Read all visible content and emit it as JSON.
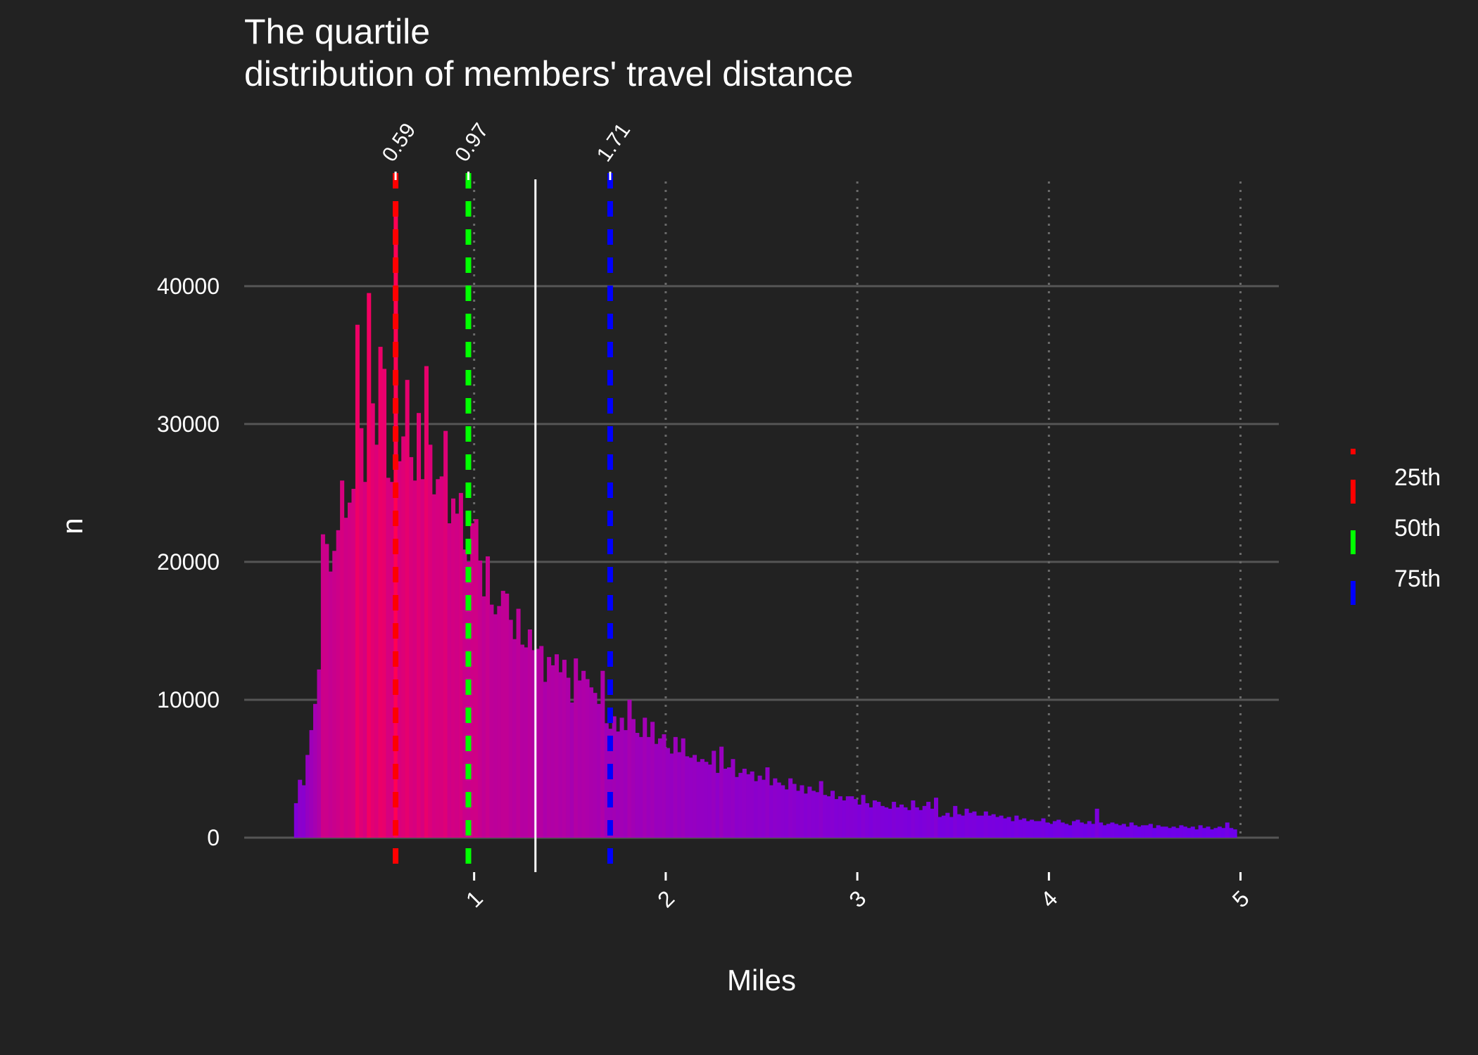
{
  "chart_data": {
    "type": "bar",
    "title_lines": [
      "The quartile",
      "distribution of members' travel distance"
    ],
    "xlabel": "Miles",
    "ylabel": "n",
    "xlim": [
      -0.2,
      5.2
    ],
    "ylim": [
      -2500,
      48000
    ],
    "x_ticks": [
      1,
      2,
      3,
      4,
      5
    ],
    "x_tick_labels": [
      "1",
      "2",
      "3",
      "4",
      "5"
    ],
    "y_ticks": [
      0,
      10000,
      20000,
      30000,
      40000
    ],
    "y_tick_labels": [
      "0",
      "10000",
      "20000",
      "30000",
      "40000"
    ],
    "grid": "horizontal major lines solid, vertical major lines dotted",
    "bin_width": 0.02,
    "color_low": "#5a00ff",
    "color_high": "#ff0055",
    "histogram": {
      "x": [
        0.07,
        0.09,
        0.11,
        0.13,
        0.15,
        0.17,
        0.19,
        0.21,
        0.23,
        0.25,
        0.27,
        0.29,
        0.31,
        0.33,
        0.35,
        0.37,
        0.39,
        0.41,
        0.43,
        0.45,
        0.47,
        0.49,
        0.51,
        0.53,
        0.55,
        0.57,
        0.59,
        0.61,
        0.63,
        0.65,
        0.67,
        0.69,
        0.71,
        0.73,
        0.75,
        0.77,
        0.79,
        0.81,
        0.83,
        0.85,
        0.87,
        0.89,
        0.91,
        0.93,
        0.95,
        0.97,
        0.99,
        1.01,
        1.03,
        1.05,
        1.07,
        1.09,
        1.11,
        1.13,
        1.15,
        1.17,
        1.19,
        1.21,
        1.23,
        1.25,
        1.27,
        1.29,
        1.31,
        1.33,
        1.35,
        1.37,
        1.39,
        1.41,
        1.43,
        1.45,
        1.47,
        1.49,
        1.51,
        1.53,
        1.55,
        1.57,
        1.59,
        1.61,
        1.63,
        1.65,
        1.67,
        1.69,
        1.71,
        1.73,
        1.75,
        1.77,
        1.79,
        1.81,
        1.83,
        1.85,
        1.87,
        1.89,
        1.91,
        1.93,
        1.95,
        1.97,
        1.99,
        2.01,
        2.03,
        2.05,
        2.07,
        2.09,
        2.11,
        2.13,
        2.15,
        2.17,
        2.19,
        2.21,
        2.23,
        2.25,
        2.27,
        2.29,
        2.31,
        2.33,
        2.35,
        2.37,
        2.39,
        2.41,
        2.43,
        2.45,
        2.47,
        2.49,
        2.51,
        2.53,
        2.55,
        2.57,
        2.59,
        2.61,
        2.63,
        2.65,
        2.67,
        2.69,
        2.71,
        2.73,
        2.75,
        2.77,
        2.79,
        2.81,
        2.83,
        2.85,
        2.87,
        2.89,
        2.91,
        2.93,
        2.95,
        2.97,
        2.99,
        3.01,
        3.03,
        3.05,
        3.07,
        3.09,
        3.11,
        3.13,
        3.15,
        3.17,
        3.19,
        3.21,
        3.23,
        3.25,
        3.27,
        3.29,
        3.31,
        3.33,
        3.35,
        3.37,
        3.39,
        3.41,
        3.43,
        3.45,
        3.47,
        3.49,
        3.51,
        3.53,
        3.55,
        3.57,
        3.59,
        3.61,
        3.63,
        3.65,
        3.67,
        3.69,
        3.71,
        3.73,
        3.75,
        3.77,
        3.79,
        3.81,
        3.83,
        3.85,
        3.87,
        3.89,
        3.91,
        3.93,
        3.95,
        3.97,
        3.99,
        4.01,
        4.03,
        4.05,
        4.07,
        4.09,
        4.11,
        4.13,
        4.15,
        4.17,
        4.19,
        4.21,
        4.23,
        4.25,
        4.27,
        4.29,
        4.31,
        4.33,
        4.35,
        4.37,
        4.39,
        4.41,
        4.43,
        4.45,
        4.47,
        4.49,
        4.51,
        4.53,
        4.55,
        4.57,
        4.59,
        4.61,
        4.63,
        4.65,
        4.67,
        4.69,
        4.71,
        4.73,
        4.75,
        4.77,
        4.79,
        4.81,
        4.83,
        4.85,
        4.87,
        4.89,
        4.91,
        4.93,
        4.95,
        4.97
      ],
      "n": [
        2500,
        4200,
        3800,
        6000,
        7800,
        9700,
        12200,
        22000,
        21300,
        19300,
        20800,
        22300,
        25900,
        23200,
        24300,
        25300,
        37200,
        29700,
        25800,
        39500,
        31500,
        28500,
        35600,
        34000,
        26100,
        25800,
        45800,
        27300,
        29100,
        33200,
        27600,
        25900,
        30800,
        26000,
        34200,
        28500,
        24900,
        26000,
        26200,
        29500,
        22800,
        24600,
        23500,
        25000,
        20900,
        20000,
        22800,
        23100,
        20100,
        17500,
        20400,
        16900,
        16200,
        16800,
        17900,
        17700,
        15800,
        14400,
        16600,
        14000,
        13800,
        15100,
        13600,
        13700,
        13900,
        11300,
        13100,
        12500,
        13300,
        12000,
        12900,
        11600,
        9800,
        13000,
        11400,
        12100,
        11500,
        10900,
        10500,
        9700,
        12100,
        8300,
        7900,
        8800,
        7700,
        8700,
        7800,
        10000,
        8600,
        7600,
        7300,
        8700,
        7300,
        8400,
        6800,
        7200,
        7500,
        6500,
        6100,
        7300,
        6200,
        7200,
        5900,
        5800,
        6000,
        5500,
        5700,
        5500,
        5300,
        6300,
        4700,
        6600,
        5000,
        5100,
        5700,
        4400,
        4700,
        5000,
        4600,
        4800,
        4100,
        4500,
        4200,
        5100,
        3800,
        4300,
        4000,
        3800,
        3500,
        4300,
        3900,
        3400,
        3800,
        3200,
        3700,
        3400,
        3300,
        4100,
        3100,
        3000,
        3400,
        2800,
        3000,
        2700,
        3000,
        3000,
        2800,
        2400,
        3100,
        2500,
        2200,
        2700,
        2600,
        2300,
        2200,
        2100,
        2600,
        2200,
        2400,
        2200,
        2000,
        2700,
        2200,
        2000,
        2300,
        2600,
        2100,
        2900,
        1500,
        1600,
        1800,
        1500,
        2300,
        1700,
        1600,
        2100,
        1800,
        1900,
        1600,
        1600,
        1900,
        1600,
        1700,
        1500,
        1600,
        1400,
        1500,
        1200,
        1600,
        1300,
        1400,
        1200,
        1300,
        1200,
        1200,
        1400,
        1100,
        1000,
        1200,
        1300,
        1100,
        1000,
        900,
        1200,
        1300,
        1100,
        1000,
        1200,
        1000,
        2100,
        1100,
        900,
        1000,
        1100,
        1000,
        900,
        1000,
        800,
        1100,
        900,
        800,
        900,
        900,
        1000,
        700,
        900,
        800,
        800,
        700,
        800,
        700,
        900,
        800,
        700,
        800,
        600,
        900,
        700,
        800,
        600,
        700,
        800,
        700,
        1100,
        700,
        600,
        700,
        600,
        700,
        800,
        600,
        700,
        1000,
        500,
        800,
        600,
        700,
        700,
        600,
        500
      ]
    },
    "quartiles": [
      {
        "label": "0.59",
        "value": 0.59,
        "legend": "25th",
        "color": "#ff0000"
      },
      {
        "label": "0.97",
        "value": 0.97,
        "legend": "50th",
        "color": "#00ff00"
      },
      {
        "label": "1.71",
        "value": 1.71,
        "legend": "75th",
        "color": "#0000ff"
      }
    ],
    "mean_line": {
      "value": 1.32,
      "color": "#ffffff"
    },
    "legend": {
      "position": "right",
      "entries": [
        "25th",
        "50th",
        "75th"
      ]
    }
  }
}
